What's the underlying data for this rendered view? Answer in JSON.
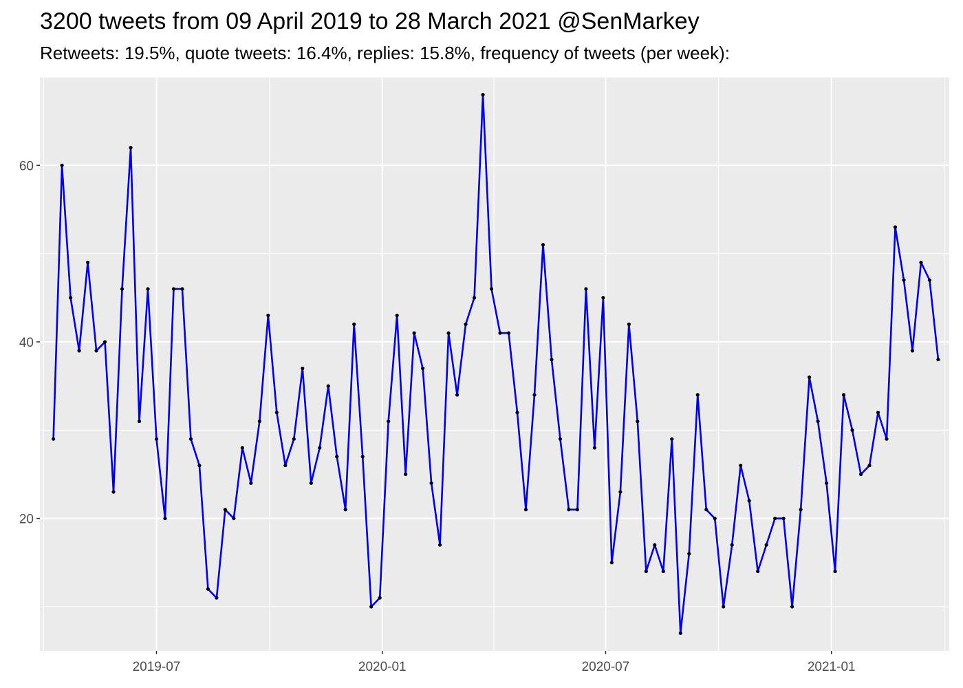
{
  "chart_data": {
    "type": "line",
    "title": "3200 tweets from 09 April 2019 to 28 March 2021 @SenMarkey",
    "subtitle": "Retweets: 19.5%, quote tweets: 16.4%, replies: 15.8%, frequency of tweets (per week):",
    "xlabel": "",
    "ylabel": "",
    "x_start": "2019-04-08",
    "x_step_days": 7,
    "xlim": [
      "2019-03-28",
      "2021-04-07"
    ],
    "ylim": [
      5,
      70
    ],
    "x_ticks": [
      {
        "label": "2019-07",
        "date": "2019-07-01"
      },
      {
        "label": "2020-01",
        "date": "2020-01-01"
      },
      {
        "label": "2020-07",
        "date": "2020-07-01"
      },
      {
        "label": "2021-01",
        "date": "2021-01-01"
      }
    ],
    "y_ticks": [
      20,
      40,
      60
    ],
    "grid": true,
    "line_color": "#0000ee",
    "point_color": "#000000",
    "background_color": "#ebebeb",
    "series": [
      {
        "values": [
          29,
          60,
          45,
          39,
          49,
          39,
          40,
          23,
          46,
          62,
          31,
          46,
          29,
          20,
          46,
          46,
          29,
          26,
          12,
          11,
          21,
          20,
          28,
          24,
          31,
          43,
          32,
          26,
          29,
          37,
          24,
          28,
          35,
          27,
          21,
          42,
          27,
          10,
          11,
          31,
          43,
          25,
          41,
          37,
          24,
          17,
          41,
          34,
          42,
          45,
          68,
          46,
          41,
          41,
          32,
          21,
          34,
          51,
          38,
          29,
          21,
          21,
          46,
          28,
          45,
          15,
          23,
          42,
          31,
          14,
          17,
          14,
          29,
          7,
          16,
          34,
          21,
          20,
          10,
          17,
          26,
          22,
          14,
          17,
          20,
          20,
          10,
          21,
          36,
          31,
          24,
          14,
          34,
          30,
          25,
          26,
          32,
          29,
          53,
          47,
          39,
          49,
          47,
          38
        ]
      }
    ]
  }
}
